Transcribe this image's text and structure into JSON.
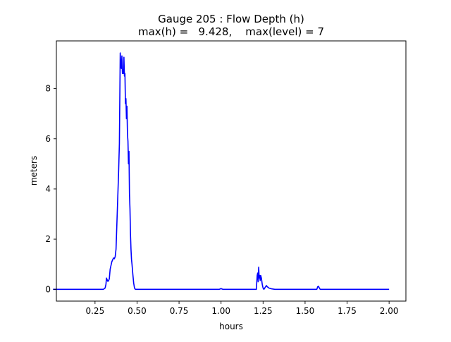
{
  "chart_data": {
    "type": "line",
    "title_line1": "Gauge 205 : Flow Depth (h)",
    "title_line2": "max(h) =   9.428,    max(level) = 7",
    "xlabel": "hours",
    "ylabel": "meters",
    "xlim": [
      0.02,
      2.1
    ],
    "ylim": [
      -0.47,
      9.9
    ],
    "x_ticks": [
      0.25,
      0.5,
      0.75,
      1.0,
      1.25,
      1.5,
      1.75,
      2.0
    ],
    "x_tick_labels": [
      "0.25",
      "0.50",
      "0.75",
      "1.00",
      "1.25",
      "1.50",
      "1.75",
      "2.00"
    ],
    "y_ticks": [
      0,
      2,
      4,
      6,
      8
    ],
    "y_tick_labels": [
      "0",
      "2",
      "4",
      "6",
      "8"
    ],
    "grid": false,
    "series": [
      {
        "color": "#0000ff",
        "x": [
          0.0,
          0.3,
          0.31,
          0.315,
          0.318,
          0.322,
          0.326,
          0.33,
          0.335,
          0.34,
          0.35,
          0.36,
          0.365,
          0.37,
          0.375,
          0.38,
          0.385,
          0.39,
          0.395,
          0.4,
          0.403,
          0.407,
          0.41,
          0.413,
          0.416,
          0.419,
          0.422,
          0.425,
          0.428,
          0.431,
          0.434,
          0.437,
          0.44,
          0.443,
          0.446,
          0.449,
          0.452,
          0.455,
          0.458,
          0.461,
          0.464,
          0.467,
          0.47,
          0.475,
          0.48,
          0.485,
          0.49,
          0.495,
          0.5,
          0.505,
          0.51,
          0.52,
          0.98,
          0.99,
          1.0,
          1.01,
          1.02,
          1.2,
          1.21,
          1.215,
          1.218,
          1.221,
          1.224,
          1.227,
          1.23,
          1.233,
          1.236,
          1.24,
          1.245,
          1.25,
          1.255,
          1.26,
          1.265,
          1.27,
          1.275,
          1.28,
          1.285,
          1.29,
          1.3,
          1.32,
          1.56,
          1.57,
          1.575,
          1.58,
          1.585,
          1.59,
          1.6,
          2.0
        ],
        "y": [
          0.0,
          0.0,
          0.05,
          0.2,
          0.45,
          0.38,
          0.32,
          0.33,
          0.42,
          0.8,
          1.1,
          1.25,
          1.22,
          1.3,
          1.6,
          2.6,
          3.6,
          4.6,
          5.8,
          9.42,
          9.0,
          8.8,
          9.3,
          8.6,
          8.75,
          8.6,
          9.25,
          8.5,
          8.6,
          7.4,
          7.6,
          6.8,
          7.3,
          6.2,
          5.9,
          5.0,
          5.5,
          3.8,
          3.2,
          2.2,
          1.6,
          1.2,
          1.0,
          0.6,
          0.25,
          0.05,
          0.0,
          0.0,
          0.0,
          0.0,
          0.0,
          0.0,
          0.0,
          0.0,
          0.03,
          0.0,
          0.0,
          0.0,
          0.0,
          0.55,
          0.65,
          0.3,
          0.88,
          0.45,
          0.55,
          0.35,
          0.55,
          0.45,
          0.2,
          0.05,
          0.0,
          0.05,
          0.1,
          0.15,
          0.1,
          0.08,
          0.05,
          0.04,
          0.02,
          0.0,
          0.0,
          0.0,
          0.1,
          0.12,
          0.05,
          0.0,
          0.0,
          0.0
        ]
      }
    ]
  }
}
